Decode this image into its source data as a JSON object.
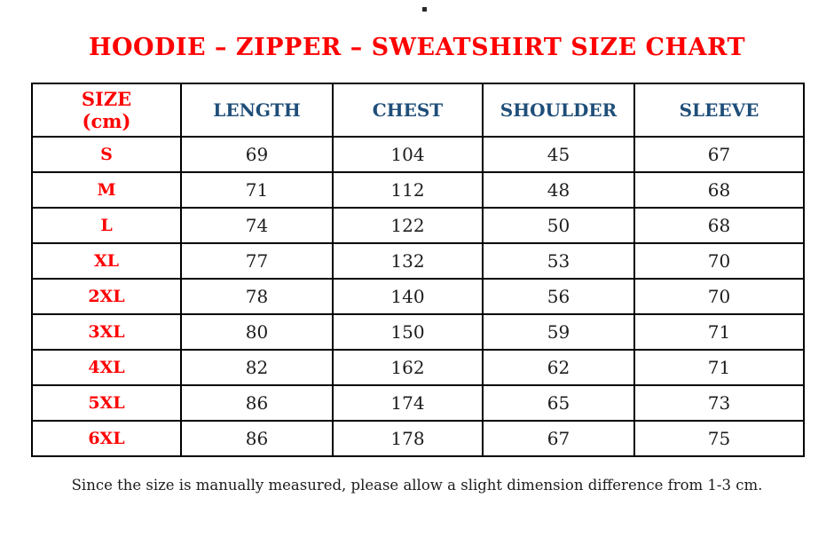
{
  "page": {
    "title": "HOODIE – ZIPPER – SWEATSHIRT SIZE CHART",
    "footnote": "Since the size is manually measured, please allow a slight dimension difference from 1-3 cm."
  },
  "colors": {
    "title_red": "#ff0000",
    "header_blue": "#1f4e79",
    "body_text": "#1c1c1c",
    "table_border": "#000000",
    "background": "#ffffff"
  },
  "table": {
    "header": {
      "size_line1": "SIZE",
      "size_line2": "(cm)",
      "cols": [
        "LENGTH",
        "CHEST",
        "SHOULDER",
        "SLEEVE"
      ]
    },
    "rows": [
      {
        "size": "S",
        "length": "69",
        "chest": "104",
        "shoulder": "45",
        "sleeve": "67"
      },
      {
        "size": "M",
        "length": "71",
        "chest": "112",
        "shoulder": "48",
        "sleeve": "68"
      },
      {
        "size": "L",
        "length": "74",
        "chest": "122",
        "shoulder": "50",
        "sleeve": "68"
      },
      {
        "size": "XL",
        "length": "77",
        "chest": "132",
        "shoulder": "53",
        "sleeve": "70"
      },
      {
        "size": "2XL",
        "length": "78",
        "chest": "140",
        "shoulder": "56",
        "sleeve": "70"
      },
      {
        "size": "3XL",
        "length": "80",
        "chest": "150",
        "shoulder": "59",
        "sleeve": "71"
      },
      {
        "size": "4XL",
        "length": "82",
        "chest": "162",
        "shoulder": "62",
        "sleeve": "71"
      },
      {
        "size": "5XL",
        "length": "86",
        "chest": "174",
        "shoulder": "65",
        "sleeve": "73"
      },
      {
        "size": "6XL",
        "length": "86",
        "chest": "178",
        "shoulder": "67",
        "sleeve": "75"
      }
    ]
  },
  "chart_data": {
    "type": "table",
    "title": "HOODIE – ZIPPER – SWEATSHIRT SIZE CHART",
    "columns": [
      "SIZE (cm)",
      "LENGTH",
      "CHEST",
      "SHOULDER",
      "SLEEVE"
    ],
    "rows": [
      [
        "S",
        69,
        104,
        45,
        67
      ],
      [
        "M",
        71,
        112,
        48,
        68
      ],
      [
        "L",
        74,
        122,
        50,
        68
      ],
      [
        "XL",
        77,
        132,
        53,
        70
      ],
      [
        "2XL",
        78,
        140,
        56,
        70
      ],
      [
        "3XL",
        80,
        150,
        59,
        71
      ],
      [
        "4XL",
        82,
        162,
        62,
        71
      ],
      [
        "5XL",
        86,
        174,
        65,
        73
      ],
      [
        "6XL",
        86,
        178,
        67,
        75
      ]
    ],
    "units": "cm",
    "note": "Since the size is manually measured, please allow a slight dimension difference from 1-3 cm."
  }
}
